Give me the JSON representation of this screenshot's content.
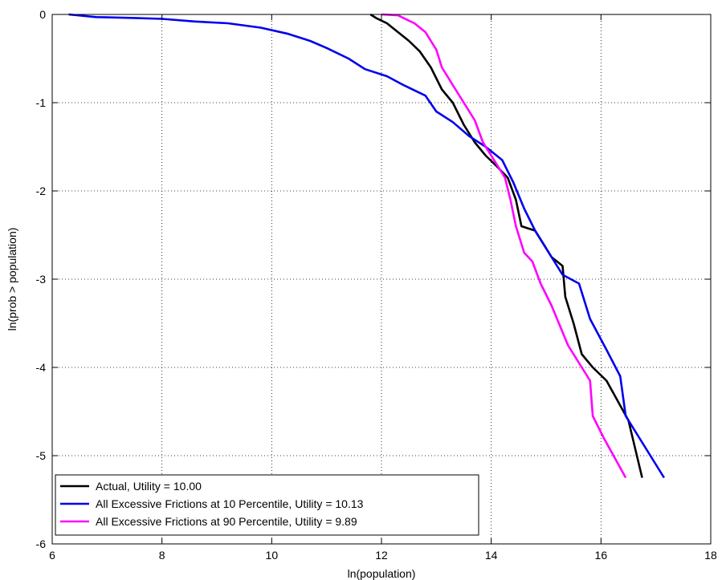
{
  "chart_data": {
    "type": "line",
    "xlabel": "ln(population)",
    "ylabel": "ln(prob > population)",
    "xlim": [
      6,
      18
    ],
    "ylim": [
      -6,
      0
    ],
    "xticks": [
      6,
      8,
      10,
      12,
      14,
      16,
      18
    ],
    "yticks": [
      0,
      -1,
      -2,
      -3,
      -4,
      -5,
      -6
    ],
    "grid": true,
    "legend_position": "bottom-left",
    "series": [
      {
        "name": "Actual, Utility = 10.00",
        "color": "#000000",
        "points": [
          [
            11.8,
            0.0
          ],
          [
            11.9,
            -0.04
          ],
          [
            12.1,
            -0.1
          ],
          [
            12.3,
            -0.2
          ],
          [
            12.5,
            -0.3
          ],
          [
            12.7,
            -0.42
          ],
          [
            12.9,
            -0.6
          ],
          [
            13.1,
            -0.85
          ],
          [
            13.3,
            -1.0
          ],
          [
            13.5,
            -1.25
          ],
          [
            13.7,
            -1.45
          ],
          [
            13.9,
            -1.6
          ],
          [
            14.1,
            -1.72
          ],
          [
            14.3,
            -1.85
          ],
          [
            14.45,
            -2.1
          ],
          [
            14.55,
            -2.4
          ],
          [
            14.8,
            -2.45
          ],
          [
            14.95,
            -2.6
          ],
          [
            15.1,
            -2.75
          ],
          [
            15.3,
            -2.85
          ],
          [
            15.35,
            -3.2
          ],
          [
            15.5,
            -3.5
          ],
          [
            15.65,
            -3.85
          ],
          [
            15.85,
            -4.0
          ],
          [
            16.1,
            -4.15
          ],
          [
            16.5,
            -4.6
          ],
          [
            16.75,
            -5.25
          ]
        ]
      },
      {
        "name": "All Excessive Frictions at 10 Percentile, Utility =  10.13",
        "color": "#0000ee",
        "points": [
          [
            6.3,
            0.0
          ],
          [
            6.8,
            -0.03
          ],
          [
            7.5,
            -0.04
          ],
          [
            8.0,
            -0.05
          ],
          [
            8.6,
            -0.08
          ],
          [
            9.2,
            -0.1
          ],
          [
            9.8,
            -0.15
          ],
          [
            10.3,
            -0.22
          ],
          [
            10.7,
            -0.3
          ],
          [
            11.0,
            -0.38
          ],
          [
            11.4,
            -0.5
          ],
          [
            11.7,
            -0.62
          ],
          [
            12.1,
            -0.7
          ],
          [
            12.4,
            -0.8
          ],
          [
            12.8,
            -0.92
          ],
          [
            13.0,
            -1.1
          ],
          [
            13.3,
            -1.22
          ],
          [
            13.6,
            -1.38
          ],
          [
            13.9,
            -1.5
          ],
          [
            14.2,
            -1.65
          ],
          [
            14.4,
            -1.9
          ],
          [
            14.6,
            -2.2
          ],
          [
            14.8,
            -2.45
          ],
          [
            15.0,
            -2.65
          ],
          [
            15.3,
            -2.95
          ],
          [
            15.6,
            -3.05
          ],
          [
            15.8,
            -3.45
          ],
          [
            16.1,
            -3.8
          ],
          [
            16.35,
            -4.1
          ],
          [
            16.45,
            -4.55
          ],
          [
            17.15,
            -5.25
          ]
        ]
      },
      {
        "name": "All Excessive Frictions at 90 Percentile, Utility =  9.89",
        "color": "#ff00ff",
        "points": [
          [
            12.0,
            0.0
          ],
          [
            12.3,
            -0.01
          ],
          [
            12.6,
            -0.1
          ],
          [
            12.8,
            -0.2
          ],
          [
            13.0,
            -0.4
          ],
          [
            13.1,
            -0.6
          ],
          [
            13.3,
            -0.8
          ],
          [
            13.5,
            -1.0
          ],
          [
            13.7,
            -1.2
          ],
          [
            13.85,
            -1.45
          ],
          [
            14.0,
            -1.6
          ],
          [
            14.25,
            -1.85
          ],
          [
            14.35,
            -2.1
          ],
          [
            14.45,
            -2.4
          ],
          [
            14.6,
            -2.7
          ],
          [
            14.75,
            -2.8
          ],
          [
            14.9,
            -3.05
          ],
          [
            15.1,
            -3.3
          ],
          [
            15.4,
            -3.75
          ],
          [
            15.6,
            -3.95
          ],
          [
            15.8,
            -4.15
          ],
          [
            15.85,
            -4.55
          ],
          [
            16.05,
            -4.8
          ],
          [
            16.45,
            -5.25
          ]
        ]
      }
    ]
  }
}
